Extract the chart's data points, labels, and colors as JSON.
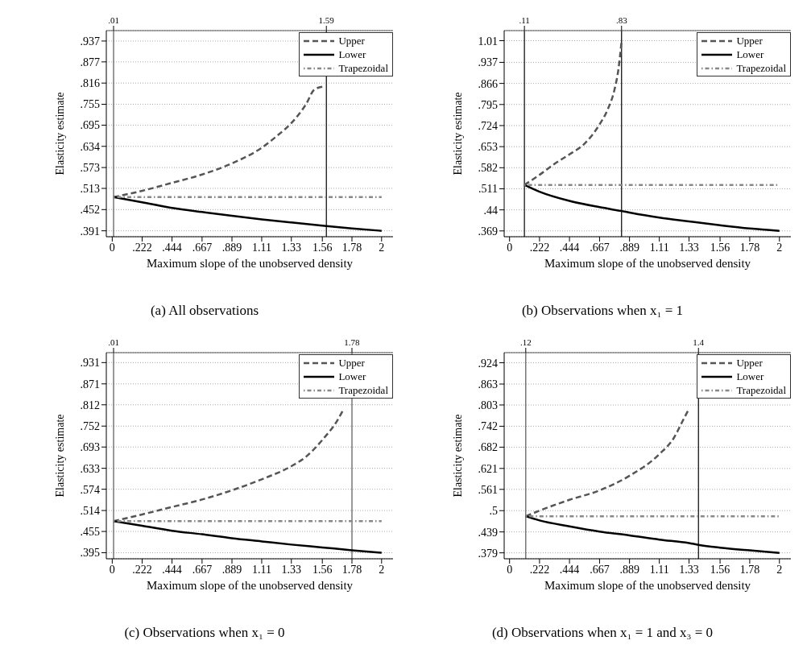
{
  "chart_data": [
    {
      "type": "line",
      "title": "(a) All observations",
      "xlabel": "Maximum slope of the unobserved density",
      "ylabel": "Elasticity estimate",
      "xlim": [
        -0.044,
        2.085
      ],
      "ylim": [
        0.374,
        0.967
      ],
      "xticks": [
        0,
        {
          "value": 0.222,
          "label": ".222"
        },
        {
          "value": 0.444,
          "label": ".444"
        },
        {
          "value": 0.667,
          "label": ".667"
        },
        {
          "value": 0.889,
          "label": ".889"
        },
        1.11,
        1.33,
        1.56,
        1.78,
        2
      ],
      "yticks": [
        {
          "value": 0.391,
          "label": ".391"
        },
        {
          "value": 0.452,
          "label": ".452"
        },
        {
          "value": 0.513,
          "label": ".513"
        },
        {
          "value": 0.573,
          "label": ".573"
        },
        {
          "value": 0.634,
          "label": ".634"
        },
        {
          "value": 0.695,
          "label": ".695"
        },
        {
          "value": 0.755,
          "label": ".755"
        },
        {
          "value": 0.816,
          "label": ".816"
        },
        {
          "value": 0.877,
          "label": ".877"
        },
        {
          "value": 0.937,
          "label": ".937"
        }
      ],
      "x2lim": [
        -0.044,
        2.085
      ],
      "x2ticks": [
        {
          "value": 0.01,
          "label": ".01"
        },
        1.59
      ],
      "ref_lines": [
        {
          "axis": "x",
          "value": 0.01,
          "color": "#555555"
        },
        {
          "axis": "x",
          "value": 1.59,
          "color": "#000000"
        }
      ],
      "grid": "y",
      "legend": "top right",
      "series": [
        {
          "name": "Upper",
          "color": "#555555",
          "line_style": "dashed",
          "x": [
            0.01,
            0.222,
            0.444,
            0.667,
            0.889,
            1.11,
            1.22,
            1.33,
            1.44,
            1.5,
            1.566
          ],
          "values": [
            0.488,
            0.506,
            0.529,
            0.553,
            0.585,
            0.63,
            0.663,
            0.701,
            0.756,
            0.797,
            0.806
          ]
        },
        {
          "name": "Lower",
          "color": "#000000",
          "line_style": "solid",
          "x": [
            0.01,
            0.222,
            0.444,
            0.667,
            0.889,
            1.11,
            1.33,
            1.56,
            1.78,
            2
          ],
          "values": [
            0.488,
            0.473,
            0.457,
            0.445,
            0.434,
            0.424,
            0.415,
            0.406,
            0.398,
            0.391
          ]
        },
        {
          "name": "Trapezoidal",
          "color": "#888888",
          "line_style": "dotted",
          "x": [
            0.01,
            2
          ],
          "values": [
            0.488,
            0.488
          ]
        }
      ]
    },
    {
      "type": "line",
      "title": "(b) Observations when x₁ = 1",
      "xlabel": "Maximum slope of the unobserved density",
      "ylabel": "Elasticity estimate",
      "xlim": [
        -0.04,
        2.085
      ],
      "ylim": [
        0.3495,
        1.044
      ],
      "xticks": [
        0,
        {
          "value": 0.222,
          "label": ".222"
        },
        {
          "value": 0.444,
          "label": ".444"
        },
        {
          "value": 0.667,
          "label": ".667"
        },
        {
          "value": 0.889,
          "label": ".889"
        },
        1.11,
        1.33,
        1.56,
        1.78,
        2
      ],
      "yticks": [
        {
          "value": 0.369,
          "label": ".369"
        },
        {
          "value": 0.44,
          "label": ".44"
        },
        {
          "value": 0.511,
          "label": ".511"
        },
        {
          "value": 0.582,
          "label": ".582"
        },
        {
          "value": 0.653,
          "label": ".653"
        },
        {
          "value": 0.724,
          "label": ".724"
        },
        {
          "value": 0.795,
          "label": ".795"
        },
        {
          "value": 0.866,
          "label": ".866"
        },
        {
          "value": 0.937,
          "label": ".937"
        },
        1.01
      ],
      "x2lim": [
        -0.04,
        2.085
      ],
      "x2ticks": [
        {
          "value": 0.11,
          "label": ".11"
        },
        {
          "value": 0.83,
          "label": ".83"
        }
      ],
      "ref_lines": [
        {
          "axis": "x",
          "value": 0.11,
          "color": "#000000"
        },
        {
          "axis": "x",
          "value": 0.83,
          "color": "#000000"
        }
      ],
      "grid": "y",
      "legend": "top right",
      "series": [
        {
          "name": "Upper",
          "color": "#555555",
          "line_style": "dashed",
          "x": [
            0.11,
            0.222,
            0.333,
            0.444,
            0.556,
            0.667,
            0.722,
            0.778,
            0.806,
            0.83
          ],
          "values": [
            0.524,
            0.558,
            0.595,
            0.627,
            0.663,
            0.728,
            0.773,
            0.846,
            0.911,
            1.008
          ]
        },
        {
          "name": "Lower",
          "color": "#000000",
          "line_style": "solid",
          "x": [
            0.11,
            0.222,
            0.444,
            0.667,
            0.83,
            0.889,
            1.11,
            1.33,
            1.56,
            1.78,
            2
          ],
          "values": [
            0.524,
            0.501,
            0.47,
            0.449,
            0.436,
            0.431,
            0.414,
            0.401,
            0.388,
            0.377,
            0.369
          ]
        },
        {
          "name": "Trapezoidal",
          "color": "#888888",
          "line_style": "dotted",
          "x": [
            0.11,
            2
          ],
          "values": [
            0.524,
            0.524
          ]
        }
      ]
    },
    {
      "type": "line",
      "title": "(c) Observations when x₁ = 0",
      "xlabel": "Maximum slope of the unobserved density",
      "ylabel": "Elasticity estimate",
      "xlim": [
        -0.044,
        2.085
      ],
      "ylim": [
        0.378,
        0.959
      ],
      "xticks": [
        0,
        {
          "value": 0.222,
          "label": ".222"
        },
        {
          "value": 0.444,
          "label": ".444"
        },
        {
          "value": 0.667,
          "label": ".667"
        },
        {
          "value": 0.889,
          "label": ".889"
        },
        1.11,
        1.33,
        1.56,
        1.78,
        2
      ],
      "yticks": [
        {
          "value": 0.395,
          "label": ".395"
        },
        {
          "value": 0.455,
          "label": ".455"
        },
        {
          "value": 0.514,
          "label": ".514"
        },
        {
          "value": 0.574,
          "label": ".574"
        },
        {
          "value": 0.633,
          "label": ".633"
        },
        {
          "value": 0.693,
          "label": ".693"
        },
        {
          "value": 0.752,
          "label": ".752"
        },
        {
          "value": 0.812,
          "label": ".812"
        },
        {
          "value": 0.871,
          "label": ".871"
        },
        {
          "value": 0.931,
          "label": ".931"
        }
      ],
      "x2lim": [
        -0.044,
        2.085
      ],
      "x2ticks": [
        {
          "value": 0.01,
          "label": ".01"
        },
        1.78
      ],
      "ref_lines": [
        {
          "axis": "x",
          "value": 0.01,
          "color": "#555555"
        },
        {
          "axis": "x",
          "value": 1.78,
          "color": "#555555"
        }
      ],
      "grid": "y",
      "legend": "top right",
      "series": [
        {
          "name": "Upper",
          "color": "#555555",
          "line_style": "dashed",
          "x": [
            0.01,
            0.222,
            0.444,
            0.667,
            0.889,
            1.11,
            1.33,
            1.44,
            1.56,
            1.67,
            1.72
          ],
          "values": [
            0.484,
            0.503,
            0.524,
            0.545,
            0.571,
            0.602,
            0.639,
            0.666,
            0.713,
            0.767,
            0.801
          ]
        },
        {
          "name": "Lower",
          "color": "#000000",
          "line_style": "solid",
          "x": [
            0.01,
            0.222,
            0.444,
            0.667,
            0.889,
            1.11,
            1.33,
            1.56,
            1.78,
            2
          ],
          "values": [
            0.484,
            0.471,
            0.457,
            0.447,
            0.436,
            0.427,
            0.418,
            0.41,
            0.402,
            0.395
          ]
        },
        {
          "name": "Trapezoidal",
          "color": "#888888",
          "line_style": "dotted",
          "x": [
            0.01,
            2
          ],
          "values": [
            0.484,
            0.484
          ]
        }
      ]
    },
    {
      "type": "line",
      "title": "(d) Observations when x₁ = 1 and x₃ = 0",
      "xlabel": "Maximum slope of the unobserved density",
      "ylabel": "Elasticity estimate",
      "xlim": [
        -0.04,
        2.085
      ],
      "ylim": [
        0.362,
        0.953
      ],
      "xticks": [
        0,
        {
          "value": 0.222,
          "label": ".222"
        },
        {
          "value": 0.444,
          "label": ".444"
        },
        {
          "value": 0.667,
          "label": ".667"
        },
        {
          "value": 0.889,
          "label": ".889"
        },
        1.11,
        1.33,
        1.56,
        1.78,
        2
      ],
      "yticks": [
        {
          "value": 0.379,
          "label": ".379"
        },
        {
          "value": 0.439,
          "label": ".439"
        },
        {
          "value": 0.5,
          "label": ".5"
        },
        {
          "value": 0.561,
          "label": ".561"
        },
        {
          "value": 0.621,
          "label": ".621"
        },
        {
          "value": 0.682,
          "label": ".682"
        },
        {
          "value": 0.742,
          "label": ".742"
        },
        {
          "value": 0.803,
          "label": ".803"
        },
        {
          "value": 0.863,
          "label": ".863"
        },
        {
          "value": 0.924,
          "label": ".924"
        }
      ],
      "x2lim": [
        -0.04,
        2.085
      ],
      "x2ticks": [
        {
          "value": 0.12,
          "label": ".12"
        },
        1.4
      ],
      "ref_lines": [
        {
          "axis": "x",
          "value": 0.12,
          "color": "#555555"
        },
        {
          "axis": "x",
          "value": 1.4,
          "color": "#000000"
        }
      ],
      "grid": "y",
      "legend": "top right",
      "series": [
        {
          "name": "Upper",
          "color": "#555555",
          "line_style": "dashed",
          "x": [
            0.12,
            0.222,
            0.444,
            0.667,
            0.889,
            1.11,
            1.22,
            1.28,
            1.33
          ],
          "values": [
            0.484,
            0.5,
            0.531,
            0.558,
            0.6,
            0.662,
            0.71,
            0.755,
            0.792
          ]
        },
        {
          "name": "Lower",
          "color": "#000000",
          "line_style": "solid",
          "x": [
            0.12,
            0.222,
            0.444,
            0.667,
            0.889,
            1.11,
            1.33,
            1.4,
            1.56,
            1.78,
            2
          ],
          "values": [
            0.484,
            0.472,
            0.455,
            0.44,
            0.429,
            0.417,
            0.407,
            0.402,
            0.394,
            0.386,
            0.379
          ]
        },
        {
          "name": "Trapezoidal",
          "color": "#888888",
          "line_style": "dotted",
          "x": [
            0.12,
            2
          ],
          "values": [
            0.484,
            0.484
          ]
        }
      ]
    }
  ]
}
